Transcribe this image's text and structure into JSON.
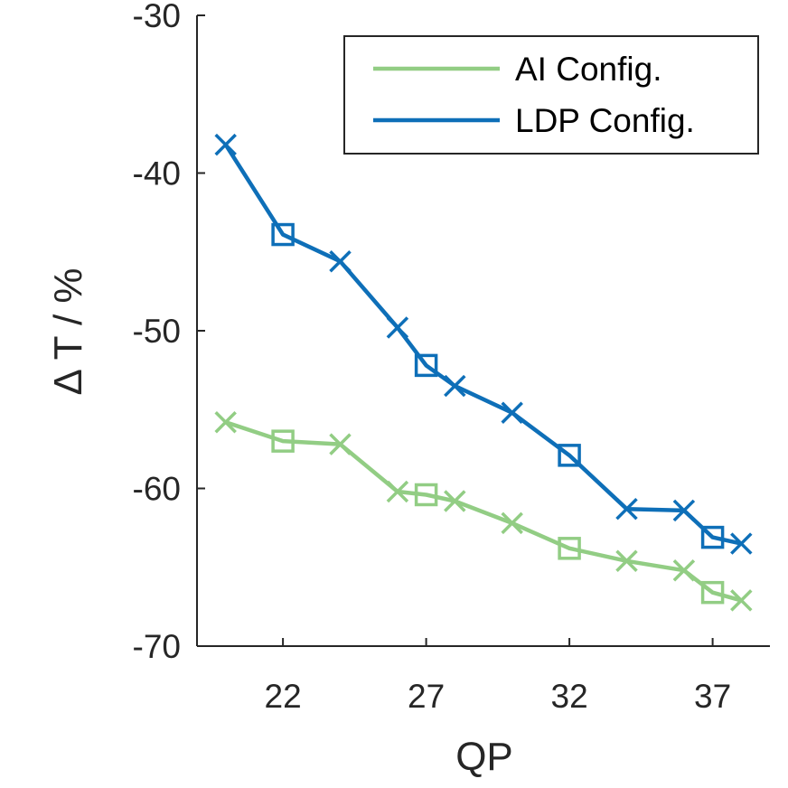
{
  "chart_data": {
    "type": "line",
    "title": "",
    "xlabel": "QP",
    "ylabel": "Δ T / %",
    "xlim": [
      19,
      39
    ],
    "ylim": [
      -70,
      -30
    ],
    "xticks": [
      22,
      27,
      32,
      37
    ],
    "xtick_labels": [
      "22",
      "27",
      "32",
      "37"
    ],
    "yticks": [
      -70,
      -60,
      -50,
      -40,
      -30
    ],
    "ytick_labels": [
      "-70",
      "-60",
      "-50",
      "-40",
      "-30"
    ],
    "legend": {
      "position": "top-right"
    },
    "grid": false,
    "series": [
      {
        "name": "AI Config.",
        "color": "#92cd84",
        "x": [
          20,
          22,
          24,
          26,
          27,
          28,
          30,
          32,
          34,
          36,
          37,
          38
        ],
        "y": [
          -55.8,
          -57.0,
          -57.2,
          -60.2,
          -60.4,
          -60.8,
          -62.2,
          -63.8,
          -64.6,
          -65.2,
          -66.6,
          -67.1
        ],
        "markers": [
          "x",
          "square",
          "x",
          "x",
          "square",
          "x",
          "x",
          "square",
          "x",
          "x",
          "square",
          "x"
        ]
      },
      {
        "name": "LDP Config.",
        "color": "#0e6fb8",
        "x": [
          20,
          22,
          24,
          26,
          27,
          28,
          30,
          32,
          34,
          36,
          37,
          38
        ],
        "y": [
          -38.2,
          -43.9,
          -45.6,
          -49.8,
          -52.2,
          -53.5,
          -55.2,
          -57.9,
          -61.3,
          -61.4,
          -63.1,
          -63.5
        ],
        "markers": [
          "x",
          "square",
          "x",
          "x",
          "square",
          "x",
          "x",
          "square",
          "x",
          "x",
          "square",
          "x"
        ]
      }
    ]
  }
}
